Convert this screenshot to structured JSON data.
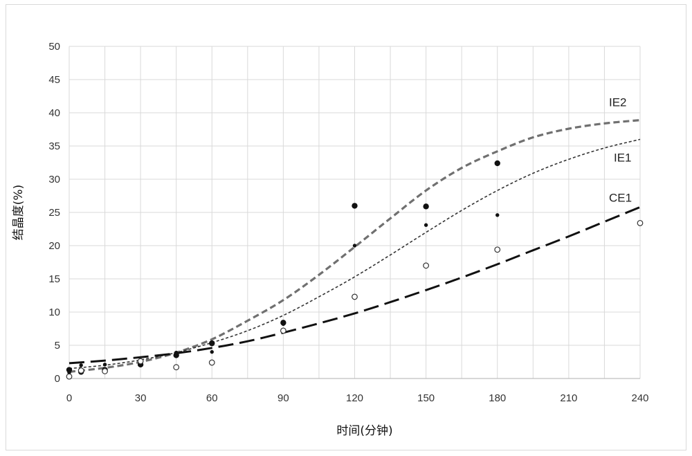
{
  "chart_data": {
    "type": "scatter",
    "xlabel": "时间(分钟)",
    "ylabel": "结晶度(%)",
    "xlim": [
      0,
      240
    ],
    "ylim": [
      0,
      50
    ],
    "xticks": [
      "0",
      "30",
      "60",
      "90",
      "120",
      "150",
      "180",
      "210",
      "240"
    ],
    "yticks": [
      "0",
      "5",
      "10",
      "15",
      "20",
      "25",
      "30",
      "35",
      "40",
      "45",
      "50"
    ],
    "grid": true,
    "fit_curves": [
      {
        "name": "IE2",
        "style": "dashed-medium",
        "color": "#707070",
        "x": [
          0,
          15,
          30,
          45,
          60,
          75,
          90,
          105,
          120,
          135,
          150,
          165,
          180,
          195,
          210,
          225,
          240
        ],
        "y": [
          1.0,
          1.6,
          2.5,
          3.9,
          5.9,
          8.7,
          11.8,
          15.6,
          19.8,
          24.1,
          28.3,
          31.7,
          34.2,
          36.3,
          37.6,
          38.4,
          38.9
        ]
      },
      {
        "name": "IE1",
        "style": "dotted-fine",
        "color": "#333333",
        "x": [
          0,
          15,
          30,
          45,
          60,
          75,
          90,
          105,
          120,
          135,
          150,
          165,
          180,
          195,
          210,
          225,
          240
        ],
        "y": [
          1.5,
          2.0,
          2.8,
          3.9,
          5.4,
          7.2,
          9.5,
          12.3,
          15.3,
          18.6,
          22.0,
          25.3,
          28.3,
          30.9,
          33.0,
          34.7,
          36.0
        ]
      },
      {
        "name": "CE1",
        "style": "dashed-long",
        "color": "#111111",
        "x": [
          0,
          15,
          30,
          45,
          60,
          75,
          90,
          105,
          120,
          135,
          150,
          165,
          180,
          195,
          210,
          225,
          240
        ],
        "y": [
          2.3,
          2.7,
          3.2,
          3.8,
          4.6,
          5.6,
          6.9,
          8.3,
          9.8,
          11.5,
          13.3,
          15.2,
          17.2,
          19.3,
          21.4,
          23.6,
          25.8
        ]
      }
    ],
    "series": [
      {
        "name": "",
        "marker": "filled-large",
        "x": [
          0,
          5,
          15,
          30,
          45,
          60,
          90,
          120,
          150,
          180
        ],
        "y": [
          1.3,
          1.0,
          1.3,
          2.1,
          3.5,
          5.3,
          8.4,
          26.0,
          25.9,
          32.4
        ]
      },
      {
        "name": "",
        "marker": "filled-small",
        "x": [
          0,
          5,
          15,
          30,
          45,
          60,
          90,
          120,
          150,
          180
        ],
        "y": [
          0.9,
          2.0,
          2.1,
          2.3,
          3.9,
          4.0,
          8.2,
          20.0,
          23.1,
          24.6
        ]
      },
      {
        "name": "",
        "marker": "open",
        "x": [
          0,
          5,
          15,
          30,
          45,
          60,
          90,
          120,
          150,
          180,
          240
        ],
        "y": [
          0.3,
          1.2,
          1.1,
          2.6,
          1.7,
          2.4,
          7.2,
          12.3,
          17.0,
          19.4,
          23.4
        ]
      }
    ]
  }
}
